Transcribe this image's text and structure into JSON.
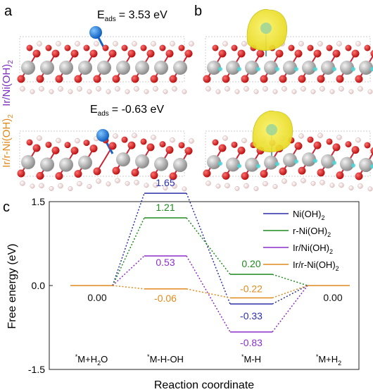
{
  "panels": {
    "a": "a",
    "b": "b",
    "c": "c"
  },
  "structures": {
    "top_label": "Ir/Ni(OH)",
    "top_label_sub": "2",
    "bottom_label": "Ir/r-Ni(OH)",
    "bottom_label_sub": "2",
    "top_label_color": "#7B2FBE",
    "bottom_label_color": "#E08A1E",
    "eads_top_prefix": "E",
    "eads_top_sub": "ads",
    "eads_top_value": "= 3.53 eV",
    "eads_bottom_prefix": "E",
    "eads_bottom_sub": "ads",
    "eads_bottom_value": "= -0.63 eV"
  },
  "chart_data": {
    "type": "line",
    "ylabel": "Free energy (eV)",
    "xlabel": "Reaction coordinate",
    "ylim": [
      -1.5,
      1.5
    ],
    "yticks": [
      "1.5",
      "0.0",
      "-1.5"
    ],
    "ytick_values": [
      1.5,
      0.0,
      -1.5
    ],
    "categories": [
      "*M+H2O",
      "*M-H-OH",
      "*M-H",
      "*M+H2"
    ],
    "category_labels": [
      {
        "star": "*",
        "main": "M+H",
        "sub": "2",
        "tail": "O"
      },
      {
        "star": "*",
        "main": "M-H-OH",
        "sub": "",
        "tail": ""
      },
      {
        "star": "*",
        "main": "M-H",
        "sub": "",
        "tail": ""
      },
      {
        "star": "*",
        "main": "M+H",
        "sub": "2",
        "tail": ""
      }
    ],
    "series": [
      {
        "name": "Ni(OH)2",
        "legend_main": "Ni(OH)",
        "legend_sub": "2",
        "color": "#2B2FA8",
        "values": [
          0.0,
          1.65,
          -0.33,
          0.0
        ],
        "labels": [
          "",
          "1.65",
          "-0.33",
          ""
        ]
      },
      {
        "name": "r-Ni(OH)2",
        "legend_main": "r-Ni(OH)",
        "legend_sub": "2",
        "color": "#1E8A1E",
        "values": [
          0.0,
          1.21,
          0.2,
          0.0
        ],
        "labels": [
          "",
          "1.21",
          "0.20",
          ""
        ]
      },
      {
        "name": "Ir/Ni(OH)2",
        "legend_main": "Ir/Ni(OH)",
        "legend_sub": "2",
        "color": "#8B2FC9",
        "values": [
          0.0,
          0.53,
          -0.83,
          0.0
        ],
        "labels": [
          "",
          "0.53",
          "-0.83",
          ""
        ]
      },
      {
        "name": "Ir/r-Ni(OH)2",
        "legend_main": "Ir/r-Ni(OH)",
        "legend_sub": "2",
        "color": "#E08A1E",
        "values": [
          0.0,
          -0.06,
          -0.22,
          0.0
        ],
        "labels": [
          "",
          "-0.06",
          "-0.22",
          ""
        ]
      }
    ],
    "shared_labels": [
      {
        "text": "0.00",
        "color": "#111111"
      },
      {
        "text": "0.00",
        "color": "#111111"
      }
    ],
    "legend_position": "top-right"
  }
}
